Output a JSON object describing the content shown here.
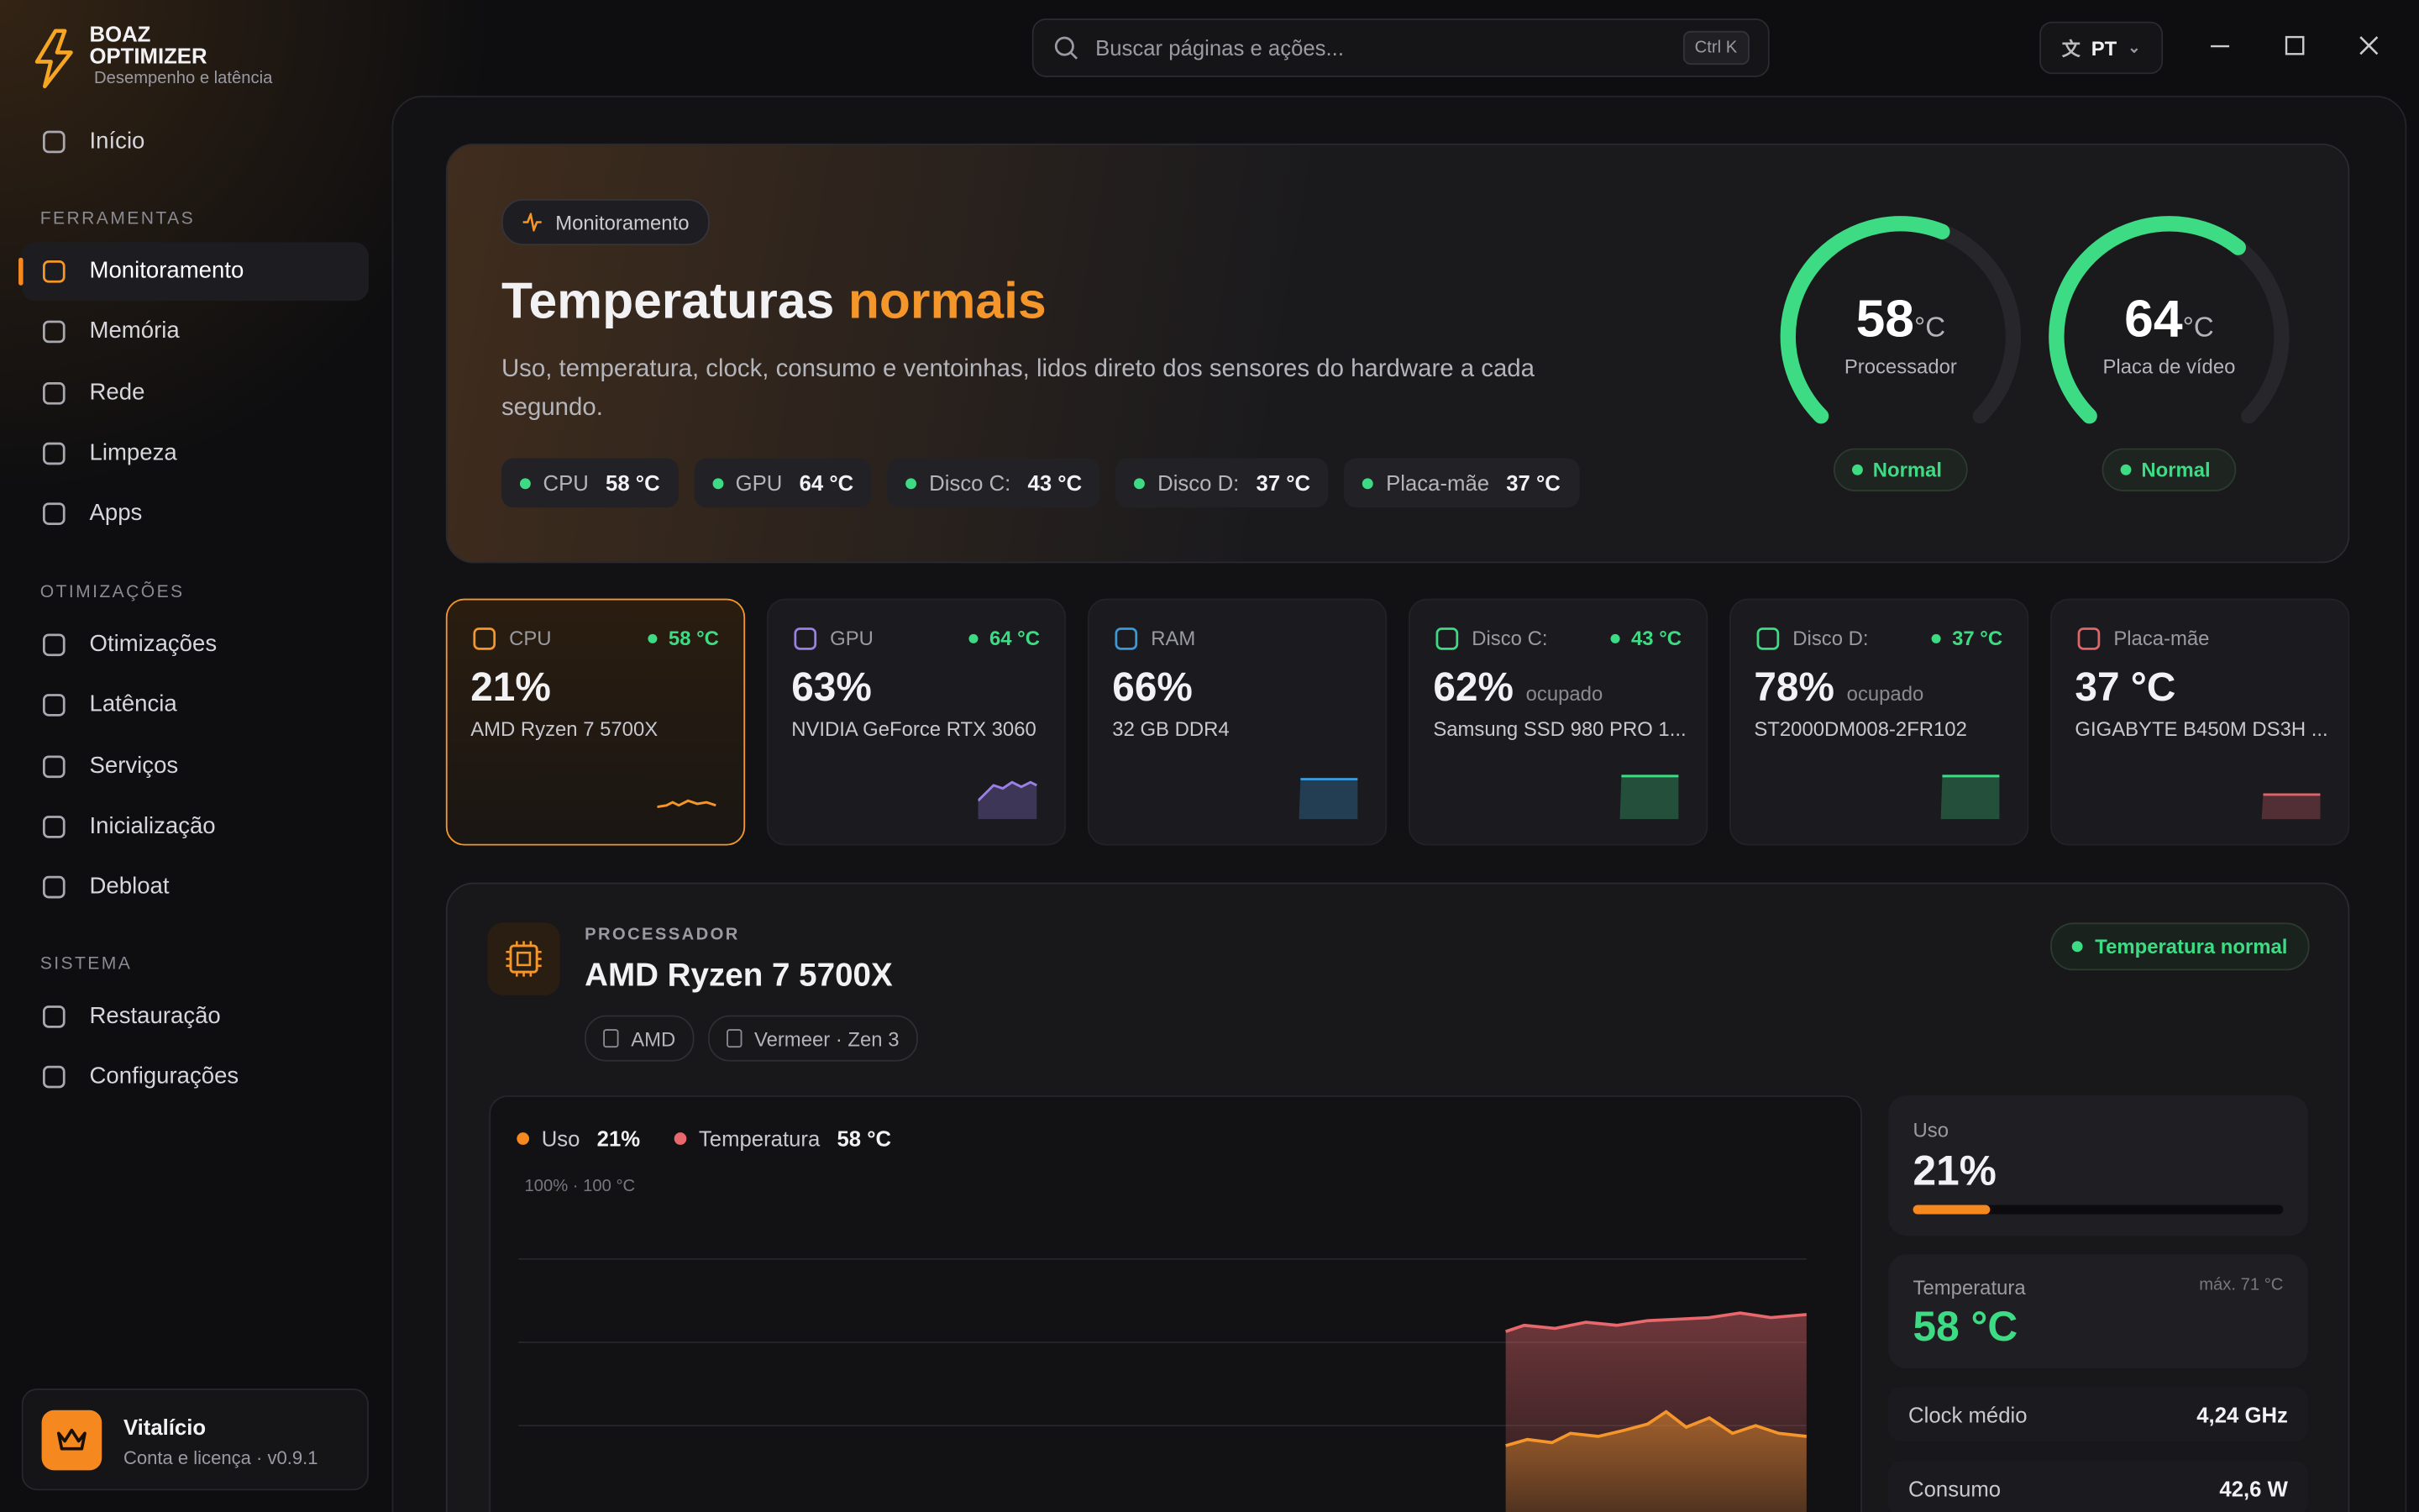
{
  "app": {
    "name_line1": "BOAZ",
    "name_line2": "OPTIMIZER",
    "tagline": "Desempenho e latência"
  },
  "search": {
    "placeholder": "Buscar páginas e ações...",
    "shortcut": "Ctrl K"
  },
  "language": "PT",
  "nav": {
    "home": "Início",
    "sections": [
      {
        "title": "FERRAMENTAS",
        "items": [
          "Monitoramento",
          "Memória",
          "Rede",
          "Limpeza",
          "Apps"
        ]
      },
      {
        "title": "OTIMIZAÇÕES",
        "items": [
          "Otimizações",
          "Latência",
          "Serviços",
          "Inicialização",
          "Debloat"
        ]
      },
      {
        "title": "SISTEMA",
        "items": [
          "Restauração",
          "Configurações"
        ]
      }
    ]
  },
  "account": {
    "title": "Vitalício",
    "subtitle": "Conta e licença · v0.9.1"
  },
  "hero": {
    "badge": "Monitoramento",
    "title": "Temperaturas",
    "title_highlight": "normais",
    "description": "Uso, temperatura, clock, consumo e ventoinhas, lidos direto dos sensores do hardware a cada segundo.",
    "chips": [
      {
        "label": "CPU",
        "value": "58 °C"
      },
      {
        "label": "GPU",
        "value": "64 °C"
      },
      {
        "label": "Disco C:",
        "value": "43 °C"
      },
      {
        "label": "Disco D:",
        "value": "37 °C"
      },
      {
        "label": "Placa-mãe",
        "value": "37 °C"
      }
    ],
    "gauges": [
      {
        "value": 58,
        "unit": "°C",
        "label": "Processador",
        "status": "Normal"
      },
      {
        "value": 64,
        "unit": "°C",
        "label": "Placa de vídeo",
        "status": "Normal"
      }
    ]
  },
  "cards": [
    {
      "name": "CPU",
      "temp": "58 °C",
      "value": "21%",
      "model": "AMD Ryzen 7 5700X"
    },
    {
      "name": "GPU",
      "temp": "64 °C",
      "value": "63%",
      "model": "NVIDIA GeForce RTX 3060"
    },
    {
      "name": "RAM",
      "value": "66%",
      "model": "32 GB DDR4"
    },
    {
      "name": "Disco C:",
      "temp": "43 °C",
      "value": "62%",
      "note": "ocupado",
      "model": "Samsung SSD 980 PRO 1..."
    },
    {
      "name": "Disco D:",
      "temp": "37 °C",
      "value": "78%",
      "note": "ocupado",
      "model": "ST2000DM008-2FR102"
    },
    {
      "name": "Placa-mãe",
      "value": "37 °C",
      "model": "GIGABYTE B450M DS3H ..."
    }
  ],
  "detail": {
    "eyebrow": "PROCESSADOR",
    "title": "AMD Ryzen 7 5700X",
    "status": "Temperatura normal",
    "tags": [
      "AMD",
      "Vermeer · Zen 3"
    ],
    "legend": [
      {
        "label": "Uso",
        "value": "21%"
      },
      {
        "label": "Temperatura",
        "value": "58 °C"
      }
    ],
    "scale_note": "100% · 100 °C",
    "usage": {
      "label": "Uso",
      "value": 21,
      "unit": "%"
    },
    "temperature": {
      "label": "Temperatura",
      "max": "máx. 71 °C",
      "value": "58 °C"
    },
    "stats": [
      {
        "label": "Clock médio",
        "value": "4,24 GHz"
      },
      {
        "label": "Consumo",
        "value": "42,6 W"
      }
    ]
  }
}
